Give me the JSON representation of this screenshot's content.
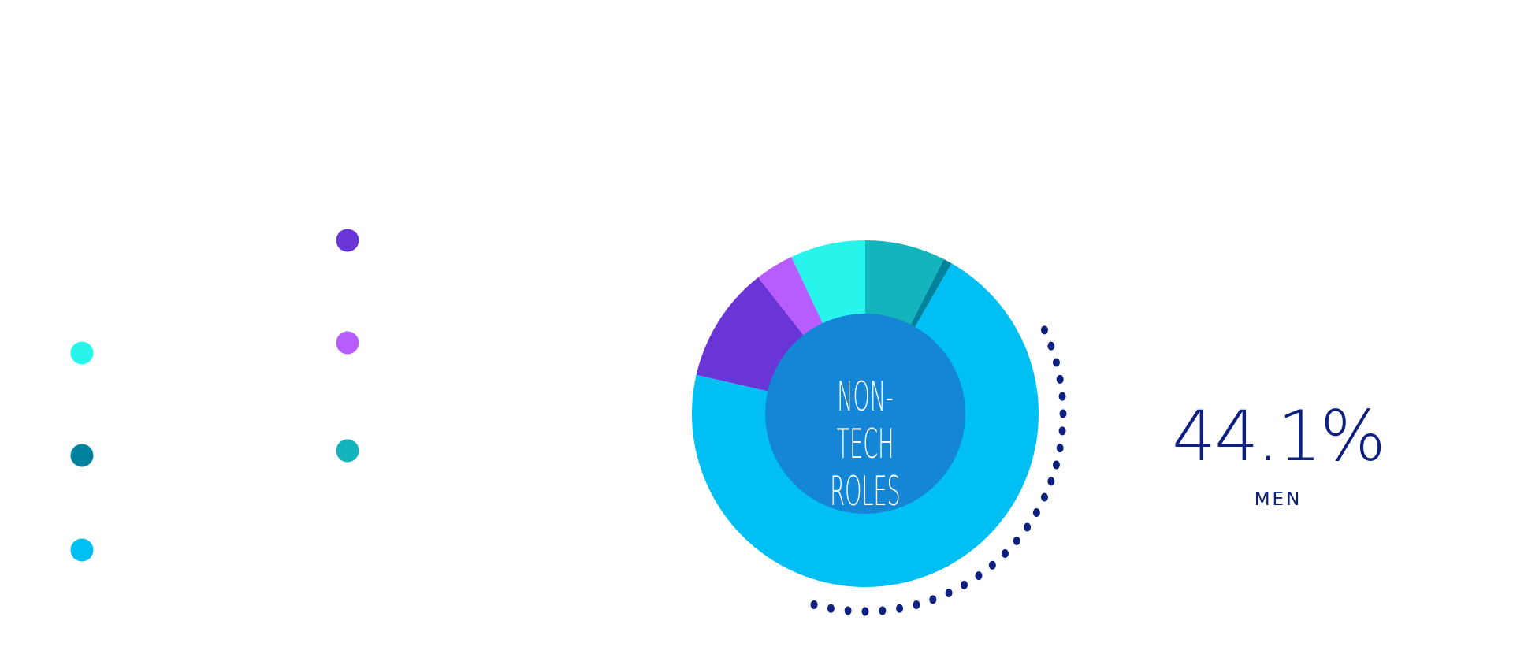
{
  "chart_data": {
    "type": "pie",
    "variant": "donut",
    "center_label": "NON-TECH\nROLES",
    "slices": [
      {
        "value": 7.5,
        "color": "#14b4bc"
      },
      {
        "value": 0.8,
        "color": "#00829f"
      },
      {
        "value": 70.3,
        "color": "#00c0f3"
      },
      {
        "value": 10.8,
        "color": "#6a35d6"
      },
      {
        "value": 3.6,
        "color": "#b75cff"
      },
      {
        "value": 7.0,
        "color": "#27f5ec"
      }
    ],
    "inner_color": "#1585d6",
    "legend_colors": [
      "#27f5ec",
      "#00829f",
      "#00c0f3",
      "#6a35d6",
      "#b75cff",
      "#14b4bc"
    ],
    "highlight": {
      "value": "44.1%",
      "label": "MEN",
      "color": "#0d2080"
    }
  }
}
